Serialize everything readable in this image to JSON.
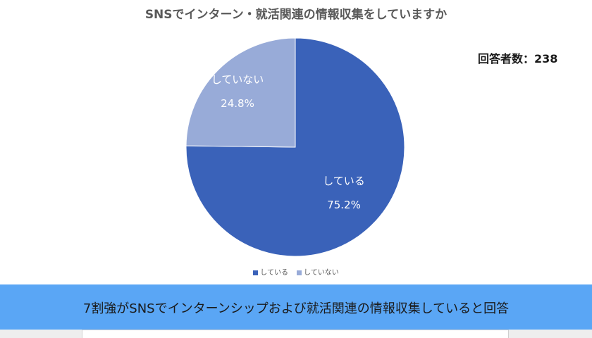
{
  "chart_data": {
    "type": "pie",
    "title": "SNSでインターン・就活関連の情報収集をしていますか",
    "slices": [
      {
        "name": "している",
        "value": 75.2,
        "label": "75.2%",
        "color": "#3a62b9"
      },
      {
        "name": "していない",
        "value": 24.8,
        "label": "24.8%",
        "color": "#98abd8"
      }
    ],
    "legend_position": "bottom"
  },
  "respondents": {
    "label": "回答者数",
    "value": "238"
  },
  "banner": {
    "text": "7割強がSNSでインターンシップおよび就活関連の情報収集していると回答",
    "color": "#5aa6f5"
  }
}
